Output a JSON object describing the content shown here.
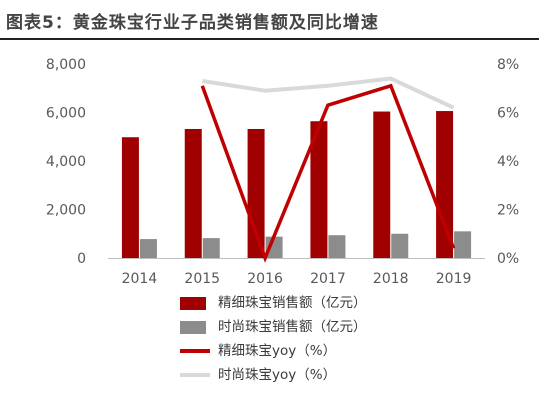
{
  "title": "图表5：黄金珠宝行业子品类销售额及同比增速",
  "colors": {
    "fine_bar": "#A00000",
    "fashion_bar": "#8C8C8C",
    "fine_line": "#C00000",
    "fashion_line": "#D9D9D9"
  },
  "legend": {
    "fine_bar": "精细珠宝销售额（亿元）",
    "fashion_bar": "时尚珠宝销售额（亿元）",
    "fine_line": "精细珠宝yoy（%）",
    "fashion_line": "时尚珠宝yoy（%）"
  },
  "chart_data": {
    "type": "bar",
    "title": "图表5：黄金珠宝行业子品类销售额及同比增速",
    "categories": [
      "2014",
      "2015",
      "2016",
      "2017",
      "2018",
      "2019"
    ],
    "y_left": {
      "ylim": [
        0,
        8000
      ],
      "ticks": [
        0,
        2000,
        4000,
        6000,
        8000
      ],
      "tick_labels": [
        "0",
        "2,000",
        "4,000",
        "6,000",
        "8,000"
      ]
    },
    "y_right": {
      "ylim": [
        0,
        8
      ],
      "ticks": [
        0,
        2,
        4,
        6,
        8
      ],
      "tick_labels": [
        "0%",
        "2%",
        "4%",
        "6%",
        "8%"
      ]
    },
    "series": [
      {
        "name": "精细珠宝销售额（亿元）",
        "type": "bar",
        "axis": "left",
        "values": [
          4980,
          5320,
          5320,
          5640,
          6040,
          6060
        ]
      },
      {
        "name": "时尚珠宝销售额（亿元）",
        "type": "bar",
        "axis": "left",
        "values": [
          780,
          820,
          880,
          940,
          1000,
          1100
        ]
      },
      {
        "name": "精细珠宝yoy（%）",
        "type": "line",
        "axis": "right",
        "values": [
          null,
          7.1,
          0.0,
          6.3,
          7.1,
          0.4
        ]
      },
      {
        "name": "时尚珠宝yoy（%）",
        "type": "line",
        "axis": "right",
        "values": [
          null,
          7.3,
          6.9,
          7.1,
          7.4,
          6.2
        ]
      }
    ],
    "grid": false,
    "legend_position": "bottom"
  }
}
